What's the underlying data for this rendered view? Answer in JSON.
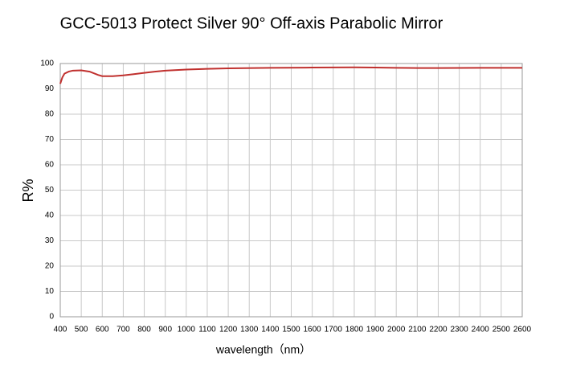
{
  "chart_data": {
    "type": "line",
    "title": "GCC-5013  Protect  Silver  90°  Off-axis  Parabolic  Mirror",
    "x_label": "wavelength（nm）",
    "y_label": "R%",
    "x": [
      400,
      410,
      420,
      440,
      460,
      500,
      540,
      580,
      600,
      650,
      700,
      750,
      800,
      850,
      900,
      1000,
      1100,
      1200,
      1400,
      1600,
      1800,
      1900,
      2000,
      2100,
      2200,
      2400,
      2600
    ],
    "series": [
      {
        "name": "R%",
        "color": "#c0302e",
        "values": [
          92,
          94.5,
          96,
          96.8,
          97.2,
          97.3,
          96.8,
          95.5,
          95,
          95,
          95.3,
          95.8,
          96.3,
          96.8,
          97.2,
          97.6,
          97.9,
          98.1,
          98.3,
          98.4,
          98.5,
          98.4,
          98.3,
          98.2,
          98.2,
          98.3,
          98.3
        ]
      }
    ],
    "xlim": [
      400,
      2600
    ],
    "ylim": [
      0,
      100
    ],
    "xticks": [
      400,
      500,
      600,
      700,
      800,
      900,
      1000,
      1100,
      1200,
      1300,
      1400,
      1500,
      1600,
      1700,
      1800,
      1900,
      2000,
      2100,
      2200,
      2300,
      2400,
      2500,
      2600
    ],
    "yticks": [
      0,
      10,
      20,
      30,
      40,
      50,
      60,
      70,
      80,
      90,
      100
    ],
    "grid": true
  }
}
